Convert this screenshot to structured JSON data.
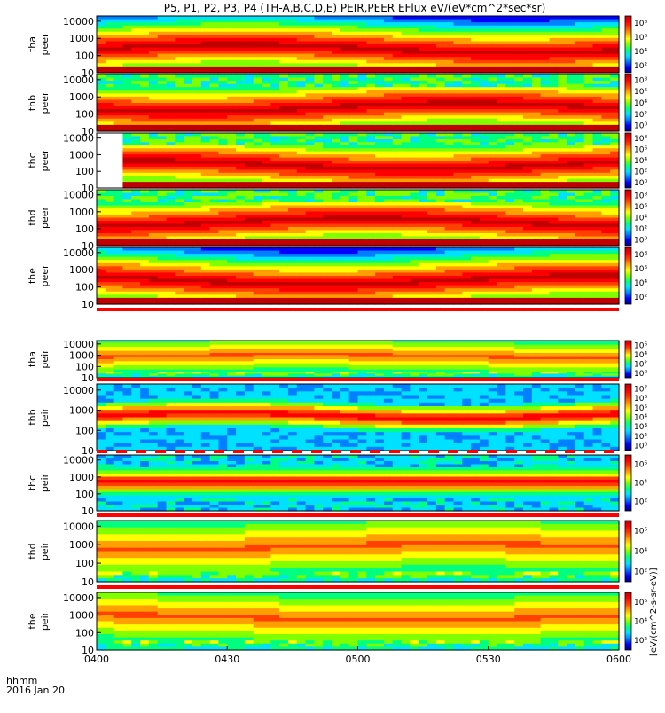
{
  "title": "P5, P1, P2, P3, P4 (TH-A,B,C,D,E) PEIR,PEER EFlux eV/(eV*cm^2*sec*sr)",
  "time_label_line1": "hhmm",
  "time_label_line2": "2016 Jan 20",
  "colorbar_unit_label": "[eV/(cm^2-s-sr-eV)]",
  "colors": {
    "spectrogram_palette": [
      "#000080",
      "#0000ff",
      "#0080ff",
      "#00e0ff",
      "#00ff80",
      "#80ff00",
      "#ffff00",
      "#ffa000",
      "#ff4000",
      "#ff0000",
      "#c00000"
    ],
    "separator": "#ff0000"
  },
  "chart_data": {
    "type": "heatmap",
    "x_ticks": [
      "0400",
      "0430",
      "0500",
      "0530",
      "0600"
    ],
    "x_range": [
      "0400",
      "0600"
    ],
    "y_scale": "log",
    "y_range": [
      10,
      20000
    ],
    "panels": [
      {
        "probe": "tha",
        "species": "peer",
        "labels": [
          "tha",
          "peer"
        ],
        "y_ticks": [
          "10",
          "100",
          "1000",
          "10000"
        ],
        "cbar_ticks": [
          "10^2",
          "10^4",
          "10^6",
          "10^8"
        ],
        "profile": "electron",
        "noise_top": false,
        "gap_left": false
      },
      {
        "probe": "thb",
        "species": "peer",
        "labels": [
          "thb",
          "peer"
        ],
        "y_ticks": [
          "10",
          "100",
          "1000",
          "10000"
        ],
        "cbar_ticks": [
          "10^0",
          "10^2",
          "10^4",
          "10^6",
          "10^8"
        ],
        "profile": "electron",
        "noise_top": true,
        "gap_left": false
      },
      {
        "probe": "thc",
        "species": "peer",
        "labels": [
          "thc",
          "peer"
        ],
        "y_ticks": [
          "10",
          "100",
          "1000",
          "10000"
        ],
        "cbar_ticks": [
          "10^0",
          "10^2",
          "10^4",
          "10^6",
          "10^8"
        ],
        "profile": "electron",
        "noise_top": true,
        "gap_left": true
      },
      {
        "probe": "thd",
        "species": "peer",
        "labels": [
          "thd",
          "peer"
        ],
        "y_ticks": [
          "10",
          "100",
          "1000",
          "10000"
        ],
        "cbar_ticks": [
          "10^0",
          "10^2",
          "10^4",
          "10^6",
          "10^8"
        ],
        "profile": "electron",
        "noise_top": true,
        "gap_left": false
      },
      {
        "probe": "the",
        "species": "peer",
        "labels": [
          "the",
          "peer"
        ],
        "y_ticks": [
          "10",
          "100",
          "1000",
          "10000"
        ],
        "cbar_ticks": [
          "10^2",
          "10^4",
          "10^6",
          "10^8"
        ],
        "profile": "electron",
        "noise_top": false,
        "gap_left": false
      },
      {
        "probe": "tha",
        "species": "peir",
        "labels": [
          "tha",
          "peir"
        ],
        "y_ticks": [
          "10",
          "100",
          "1000",
          "10000"
        ],
        "cbar_ticks": [
          "10^0",
          "10^2",
          "10^4",
          "10^6"
        ],
        "profile": "ion",
        "noise_top": false,
        "gap_left": false
      },
      {
        "probe": "thb",
        "species": "peir",
        "labels": [
          "thb",
          "peir"
        ],
        "y_ticks": [
          "10",
          "100",
          "1000",
          "10000"
        ],
        "cbar_ticks": [
          "10^0",
          "10^2",
          "10^3",
          "10^4",
          "10^5",
          "10^6",
          "10^7"
        ],
        "profile": "ion-noisy",
        "noise_top": true,
        "gap_left": false
      },
      {
        "probe": "thc",
        "species": "peir",
        "labels": [
          "thc",
          "peir"
        ],
        "y_ticks": [
          "10",
          "100",
          "1000",
          "10000"
        ],
        "cbar_ticks": [
          "10^2",
          "10^4",
          "10^6"
        ],
        "profile": "ion-band",
        "noise_top": false,
        "gap_left": false
      },
      {
        "probe": "thd",
        "species": "peir",
        "labels": [
          "thd",
          "peir"
        ],
        "y_ticks": [
          "10",
          "100",
          "1000",
          "10000"
        ],
        "cbar_ticks": [
          "10^2",
          "10^4",
          "10^6"
        ],
        "profile": "ion",
        "noise_top": false,
        "gap_left": false
      },
      {
        "probe": "the",
        "species": "peir",
        "labels": [
          "the",
          "peir"
        ],
        "y_ticks": [
          "10",
          "100",
          "1000",
          "10000"
        ],
        "cbar_ticks": [
          "10^2",
          "10^4",
          "10^6"
        ],
        "profile": "ion",
        "noise_top": false,
        "gap_left": false
      }
    ]
  }
}
